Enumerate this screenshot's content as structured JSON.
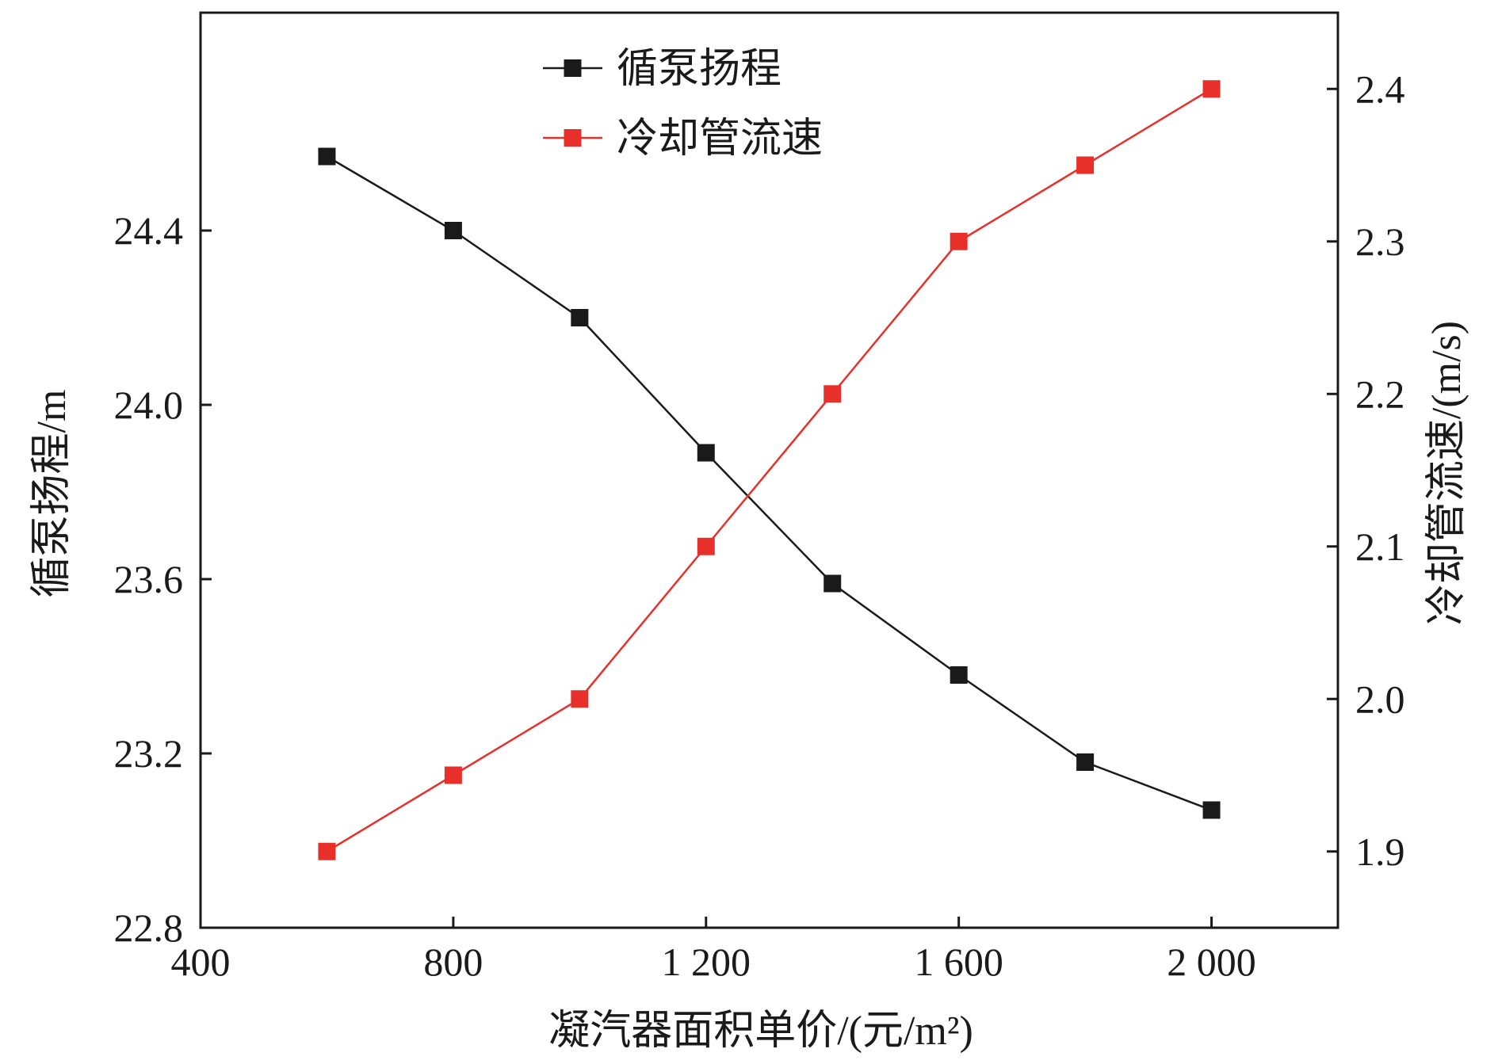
{
  "chart_data": {
    "type": "line",
    "x": [
      600,
      800,
      1000,
      1200,
      1400,
      1600,
      1800,
      2000
    ],
    "series": [
      {
        "name": "循泵扬程",
        "axis": "left",
        "color": "#1a1a1a",
        "values": [
          24.57,
          24.4,
          24.2,
          23.89,
          23.59,
          23.38,
          23.18,
          23.07
        ]
      },
      {
        "name": "冷却管流速",
        "axis": "right",
        "color": "#e8302a",
        "values": [
          1.9,
          1.95,
          2.0,
          2.1,
          2.2,
          2.3,
          2.35,
          2.4
        ]
      }
    ],
    "xlabel": "凝汽器面积单价/(元/m²)",
    "ylabel_left": "循泵扬程/m",
    "ylabel_right": "冷却管流速/(m/s)",
    "xlim": [
      400,
      2200
    ],
    "ylim_left": [
      22.8,
      24.9
    ],
    "ylim_right": [
      1.85,
      2.45
    ],
    "x_ticks": [
      {
        "value": 400,
        "label": "400"
      },
      {
        "value": 800,
        "label": "800"
      },
      {
        "value": 1200,
        "label": "1 200"
      },
      {
        "value": 1600,
        "label": "1 600"
      },
      {
        "value": 2000,
        "label": "2 000"
      }
    ],
    "y_left_ticks": [
      {
        "value": 22.8,
        "label": "22.8"
      },
      {
        "value": 23.2,
        "label": "23.2"
      },
      {
        "value": 23.6,
        "label": "23.6"
      },
      {
        "value": 24.0,
        "label": "24.0"
      },
      {
        "value": 24.4,
        "label": "24.4"
      }
    ],
    "y_right_ticks": [
      {
        "value": 1.9,
        "label": "1.9"
      },
      {
        "value": 2.0,
        "label": "2.0"
      },
      {
        "value": 2.1,
        "label": "2.1"
      },
      {
        "value": 2.2,
        "label": "2.2"
      },
      {
        "value": 2.3,
        "label": "2.3"
      },
      {
        "value": 2.4,
        "label": "2.4"
      }
    ],
    "grid": false,
    "legend_position": "top-center",
    "marker": "square"
  }
}
